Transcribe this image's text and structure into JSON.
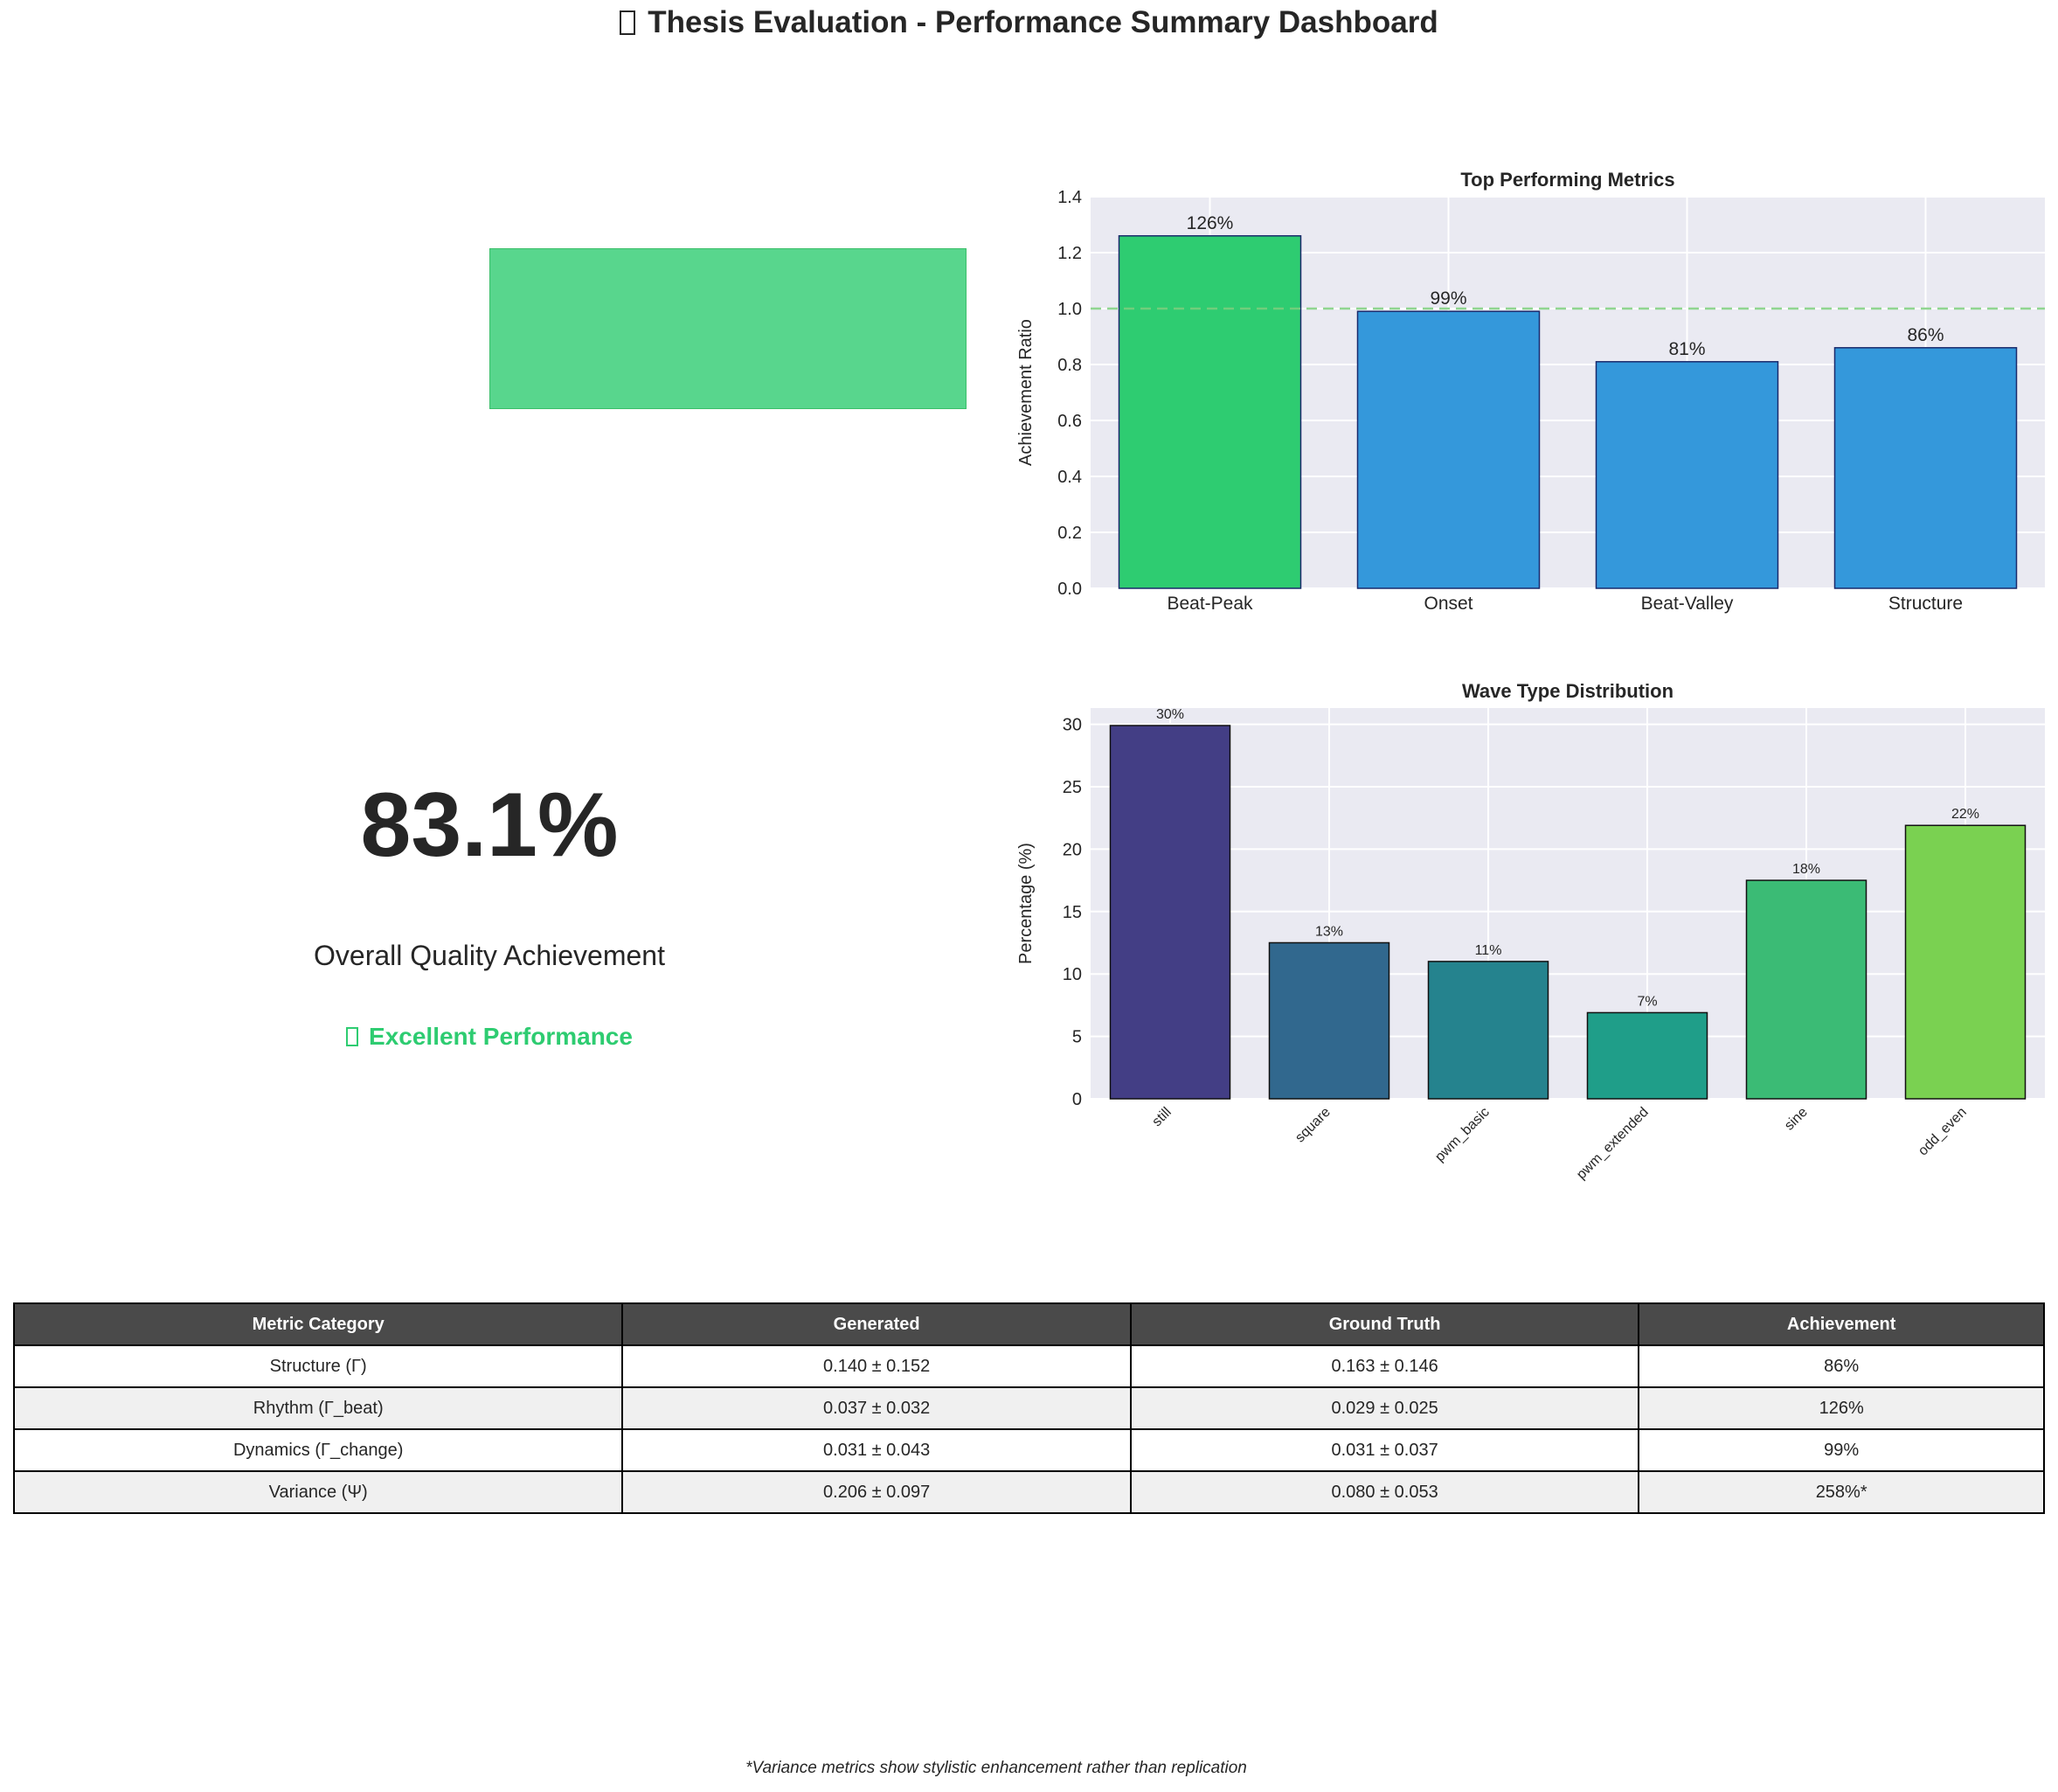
{
  "title": "Thesis Evaluation - Performance Summary Dashboard",
  "overall": {
    "value": "83.1%",
    "label": "Overall Quality Achievement",
    "status": "Excellent Performance"
  },
  "colors": {
    "highlight_green": "#2ecc71",
    "bar_blue": "#3498db",
    "reference_line": "#7dcf7d",
    "table_header": "#4a4a4a"
  },
  "chart_data": [
    {
      "type": "bar",
      "title": "Top Performing Metrics",
      "ylabel": "Achievement Ratio",
      "xlabel": "",
      "categories": [
        "Beat-Peak",
        "Onset",
        "Beat-Valley",
        "Structure"
      ],
      "values": [
        1.26,
        0.99,
        0.81,
        0.86
      ],
      "labels": [
        "126%",
        "99%",
        "81%",
        "86%"
      ],
      "colors": [
        "#2ecc71",
        "#3498db",
        "#3498db",
        "#3498db"
      ],
      "ylim": [
        0,
        1.4
      ],
      "yticks": [
        "0.0",
        "0.2",
        "0.4",
        "0.6",
        "0.8",
        "1.0",
        "1.2",
        "1.4"
      ],
      "reference_line": 1.0,
      "grid": true
    },
    {
      "type": "bar",
      "title": "Wave Type Distribution",
      "ylabel": "Percentage (%)",
      "xlabel": "",
      "categories": [
        "still",
        "square",
        "pwm_basic",
        "pwm_extended",
        "sine",
        "odd_even"
      ],
      "values": [
        29.9,
        12.5,
        11.0,
        6.9,
        17.5,
        21.9
      ],
      "labels": [
        "30%",
        "13%",
        "11%",
        "7%",
        "18%",
        "22%"
      ],
      "colors": [
        "#433e85",
        "#31688e",
        "#25838e",
        "#1f9e89",
        "#3bbb75",
        "#7ad151"
      ],
      "ylim": [
        0,
        31.3
      ],
      "yticks": [
        "0",
        "5",
        "10",
        "15",
        "20",
        "25",
        "30"
      ],
      "grid": true
    }
  ],
  "table": {
    "headers": [
      "Metric Category",
      "Generated",
      "Ground Truth",
      "Achievement"
    ],
    "rows": [
      [
        "Structure (Γ)",
        "0.140 ± 0.152",
        "0.163 ± 0.146",
        "86%"
      ],
      [
        "Rhythm (Γ_beat)",
        "0.037 ± 0.032",
        "0.029 ± 0.025",
        "126%"
      ],
      [
        "Dynamics (Γ_change)",
        "0.031 ± 0.043",
        "0.031 ± 0.037",
        "99%"
      ],
      [
        "Variance (Ψ)",
        "0.206 ± 0.097",
        "0.080 ± 0.053",
        "258%*"
      ]
    ]
  },
  "footnote": "*Variance metrics show stylistic enhancement rather than replication"
}
